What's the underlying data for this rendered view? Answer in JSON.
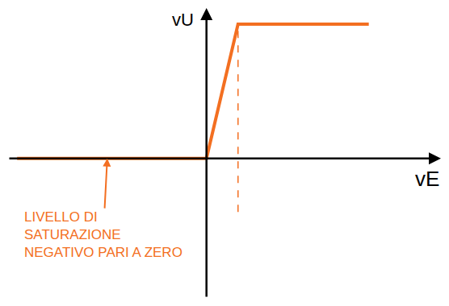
{
  "chart_data": {
    "type": "line",
    "x_label": "vE",
    "y_label": "vU",
    "xlim": [
      -22,
      26
    ],
    "ylim": [
      -13,
      14
    ],
    "xticks": [],
    "yticks": [],
    "tick_labels": false,
    "grid": false,
    "series": [
      {
        "color": "#f36f21",
        "line_style": "solid",
        "x": [
          -21,
          0,
          3.5,
          18
        ],
        "values": [
          0,
          0,
          12.5,
          12.5
        ]
      },
      {
        "color": "#f36f21",
        "line_style": "dashed",
        "x": [
          3.5,
          3.5
        ],
        "values": [
          -5,
          12.5
        ]
      }
    ],
    "annotations": [
      {
        "text": "LIVELLO DI SATURAZIONE NEGATIVO PARI A ZERO",
        "lines": [
          "LIVELLO DI",
          "SATURAZIONE",
          "NEGATIVO PARI A ZERO"
        ],
        "x": -11,
        "y": 0,
        "color": "#f36f21"
      }
    ]
  }
}
